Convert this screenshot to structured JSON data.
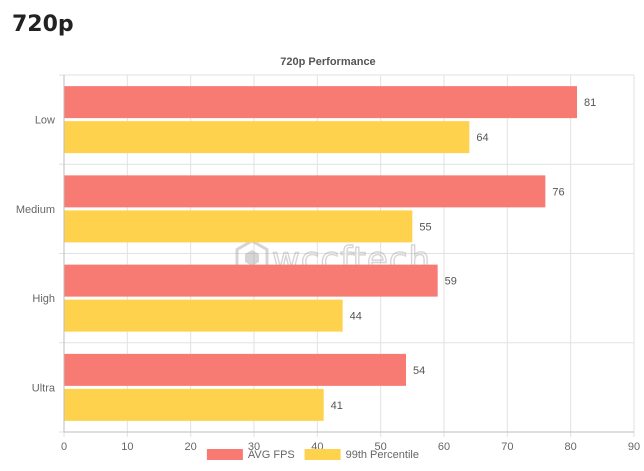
{
  "page": {
    "heading": "720p"
  },
  "watermark": {
    "text": "wccftech"
  },
  "chart_data": {
    "type": "bar",
    "orientation": "horizontal",
    "title": "720p Performance",
    "categories": [
      "Low",
      "Medium",
      "High",
      "Ultra"
    ],
    "series": [
      {
        "name": "AVG FPS",
        "values": [
          81,
          76,
          59,
          54
        ],
        "color": "#f77b72"
      },
      {
        "name": "99th Percentile",
        "values": [
          64,
          55,
          44,
          41
        ],
        "color": "#ffd24d"
      }
    ],
    "xlim": [
      0,
      90
    ],
    "xticks": [
      0,
      10,
      20,
      30,
      40,
      50,
      60,
      70,
      80,
      90
    ],
    "grid": true,
    "legend": "bottom",
    "data_labels": true
  }
}
